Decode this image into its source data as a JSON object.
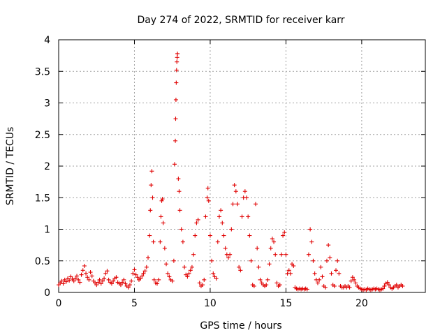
{
  "chart_data": {
    "type": "scatter",
    "title": "Day 274 of 2022, SRMTID for receiver karr",
    "xlabel": "GPS time / hours",
    "ylabel": "SRMTID / TECUs",
    "xlim": [
      0,
      24.2
    ],
    "ylim": [
      0,
      4
    ],
    "x_ticks": [
      0,
      5,
      10,
      15,
      20
    ],
    "x_tick_labels": [
      "0",
      "5",
      "10",
      "15",
      "20"
    ],
    "y_ticks": [
      0,
      0.5,
      1,
      1.5,
      2,
      2.5,
      3,
      3.5,
      4
    ],
    "y_tick_labels": [
      "0",
      "0.5",
      "1",
      "1.5",
      "2",
      "2.5",
      "3",
      "3.5",
      "4"
    ],
    "grid": true,
    "marker": "+",
    "color": "#e00000",
    "series": [
      {
        "name": "SRMTID",
        "points": [
          [
            0.0,
            0.12
          ],
          [
            0.1,
            0.15
          ],
          [
            0.2,
            0.18
          ],
          [
            0.3,
            0.14
          ],
          [
            0.4,
            0.2
          ],
          [
            0.5,
            0.17
          ],
          [
            0.6,
            0.22
          ],
          [
            0.7,
            0.19
          ],
          [
            0.8,
            0.25
          ],
          [
            0.9,
            0.21
          ],
          [
            1.0,
            0.18
          ],
          [
            1.1,
            0.22
          ],
          [
            1.2,
            0.26
          ],
          [
            1.3,
            0.2
          ],
          [
            1.4,
            0.16
          ],
          [
            1.5,
            0.28
          ],
          [
            1.6,
            0.35
          ],
          [
            1.7,
            0.42
          ],
          [
            1.8,
            0.3
          ],
          [
            1.9,
            0.24
          ],
          [
            2.0,
            0.2
          ],
          [
            2.1,
            0.32
          ],
          [
            2.2,
            0.26
          ],
          [
            2.3,
            0.18
          ],
          [
            2.4,
            0.15
          ],
          [
            2.5,
            0.12
          ],
          [
            2.6,
            0.16
          ],
          [
            2.7,
            0.2
          ],
          [
            2.8,
            0.14
          ],
          [
            2.9,
            0.18
          ],
          [
            3.0,
            0.22
          ],
          [
            3.1,
            0.3
          ],
          [
            3.2,
            0.34
          ],
          [
            3.3,
            0.2
          ],
          [
            3.4,
            0.16
          ],
          [
            3.5,
            0.14
          ],
          [
            3.6,
            0.18
          ],
          [
            3.7,
            0.22
          ],
          [
            3.8,
            0.24
          ],
          [
            3.9,
            0.16
          ],
          [
            4.0,
            0.14
          ],
          [
            4.1,
            0.12
          ],
          [
            4.2,
            0.16
          ],
          [
            4.3,
            0.2
          ],
          [
            4.4,
            0.14
          ],
          [
            4.5,
            0.1
          ],
          [
            4.6,
            0.08
          ],
          [
            4.7,
            0.12
          ],
          [
            4.8,
            0.18
          ],
          [
            4.9,
            0.3
          ],
          [
            5.0,
            0.36
          ],
          [
            5.1,
            0.28
          ],
          [
            5.2,
            0.24
          ],
          [
            5.3,
            0.2
          ],
          [
            5.4,
            0.22
          ],
          [
            5.5,
            0.26
          ],
          [
            5.6,
            0.3
          ],
          [
            5.7,
            0.34
          ],
          [
            5.8,
            0.4
          ],
          [
            5.9,
            0.55
          ],
          [
            6.0,
            0.9
          ],
          [
            6.05,
            1.3
          ],
          [
            6.1,
            1.7
          ],
          [
            6.15,
            1.92
          ],
          [
            6.2,
            1.5
          ],
          [
            6.25,
            0.8
          ],
          [
            6.3,
            0.2
          ],
          [
            6.4,
            0.15
          ],
          [
            6.5,
            0.14
          ],
          [
            6.6,
            0.2
          ],
          [
            6.7,
            0.8
          ],
          [
            6.75,
            1.2
          ],
          [
            6.8,
            1.45
          ],
          [
            6.85,
            1.48
          ],
          [
            6.9,
            1.1
          ],
          [
            7.0,
            0.7
          ],
          [
            7.1,
            0.45
          ],
          [
            7.2,
            0.3
          ],
          [
            7.3,
            0.25
          ],
          [
            7.4,
            0.2
          ],
          [
            7.5,
            0.18
          ],
          [
            7.6,
            0.5
          ],
          [
            7.65,
            2.03
          ],
          [
            7.7,
            2.4
          ],
          [
            7.72,
            2.75
          ],
          [
            7.74,
            3.05
          ],
          [
            7.76,
            3.32
          ],
          [
            7.78,
            3.52
          ],
          [
            7.8,
            3.65
          ],
          [
            7.82,
            3.72
          ],
          [
            7.84,
            3.78
          ],
          [
            7.9,
            1.8
          ],
          [
            7.95,
            1.6
          ],
          [
            8.0,
            1.3
          ],
          [
            8.1,
            1.0
          ],
          [
            8.2,
            0.8
          ],
          [
            8.3,
            0.4
          ],
          [
            8.4,
            0.28
          ],
          [
            8.5,
            0.25
          ],
          [
            8.6,
            0.3
          ],
          [
            8.7,
            0.35
          ],
          [
            8.8,
            0.4
          ],
          [
            8.9,
            0.6
          ],
          [
            9.0,
            0.9
          ],
          [
            9.1,
            1.1
          ],
          [
            9.2,
            1.15
          ],
          [
            9.3,
            0.15
          ],
          [
            9.4,
            0.1
          ],
          [
            9.5,
            0.12
          ],
          [
            9.6,
            0.2
          ],
          [
            9.7,
            1.2
          ],
          [
            9.8,
            1.5
          ],
          [
            9.85,
            1.65
          ],
          [
            9.9,
            1.45
          ],
          [
            10.0,
            0.9
          ],
          [
            10.1,
            0.5
          ],
          [
            10.2,
            0.3
          ],
          [
            10.3,
            0.25
          ],
          [
            10.4,
            0.22
          ],
          [
            10.5,
            0.8
          ],
          [
            10.6,
            1.2
          ],
          [
            10.7,
            1.3
          ],
          [
            10.8,
            1.1
          ],
          [
            10.9,
            0.9
          ],
          [
            11.0,
            0.7
          ],
          [
            11.1,
            0.6
          ],
          [
            11.2,
            0.55
          ],
          [
            11.3,
            0.6
          ],
          [
            11.4,
            1.0
          ],
          [
            11.5,
            1.4
          ],
          [
            11.6,
            1.7
          ],
          [
            11.7,
            1.6
          ],
          [
            11.8,
            1.4
          ],
          [
            11.9,
            0.4
          ],
          [
            12.0,
            0.35
          ],
          [
            12.1,
            1.2
          ],
          [
            12.2,
            1.5
          ],
          [
            12.3,
            1.6
          ],
          [
            12.4,
            1.5
          ],
          [
            12.5,
            1.2
          ],
          [
            12.6,
            0.9
          ],
          [
            12.7,
            0.5
          ],
          [
            12.8,
            0.12
          ],
          [
            12.9,
            0.1
          ],
          [
            13.0,
            1.4
          ],
          [
            13.1,
            0.7
          ],
          [
            13.2,
            0.4
          ],
          [
            13.3,
            0.2
          ],
          [
            13.4,
            0.15
          ],
          [
            13.5,
            0.12
          ],
          [
            13.6,
            0.1
          ],
          [
            13.7,
            0.12
          ],
          [
            13.8,
            0.2
          ],
          [
            13.9,
            0.45
          ],
          [
            14.0,
            0.7
          ],
          [
            14.1,
            0.85
          ],
          [
            14.2,
            0.8
          ],
          [
            14.3,
            0.6
          ],
          [
            14.4,
            0.15
          ],
          [
            14.5,
            0.1
          ],
          [
            14.6,
            0.12
          ],
          [
            14.7,
            0.6
          ],
          [
            14.8,
            0.9
          ],
          [
            14.9,
            0.95
          ],
          [
            15.0,
            0.6
          ],
          [
            15.1,
            0.3
          ],
          [
            15.2,
            0.35
          ],
          [
            15.3,
            0.3
          ],
          [
            15.4,
            0.45
          ],
          [
            15.5,
            0.42
          ],
          [
            15.6,
            0.08
          ],
          [
            15.7,
            0.06
          ],
          [
            15.8,
            0.05
          ],
          [
            15.9,
            0.06
          ],
          [
            16.0,
            0.05
          ],
          [
            16.1,
            0.06
          ],
          [
            16.2,
            0.05
          ],
          [
            16.3,
            0.06
          ],
          [
            16.4,
            0.05
          ],
          [
            16.5,
            0.6
          ],
          [
            16.6,
            1.0
          ],
          [
            16.7,
            0.8
          ],
          [
            16.8,
            0.5
          ],
          [
            16.9,
            0.3
          ],
          [
            17.0,
            0.2
          ],
          [
            17.1,
            0.15
          ],
          [
            17.2,
            0.2
          ],
          [
            17.3,
            0.4
          ],
          [
            17.4,
            0.25
          ],
          [
            17.5,
            0.1
          ],
          [
            17.6,
            0.08
          ],
          [
            17.7,
            0.5
          ],
          [
            17.8,
            0.75
          ],
          [
            17.9,
            0.55
          ],
          [
            18.0,
            0.3
          ],
          [
            18.1,
            0.12
          ],
          [
            18.2,
            0.1
          ],
          [
            18.3,
            0.35
          ],
          [
            18.4,
            0.5
          ],
          [
            18.5,
            0.3
          ],
          [
            18.6,
            0.1
          ],
          [
            18.7,
            0.08
          ],
          [
            18.8,
            0.08
          ],
          [
            18.9,
            0.1
          ],
          [
            19.0,
            0.08
          ],
          [
            19.1,
            0.1
          ],
          [
            19.2,
            0.08
          ],
          [
            19.3,
            0.18
          ],
          [
            19.4,
            0.24
          ],
          [
            19.5,
            0.2
          ],
          [
            19.6,
            0.15
          ],
          [
            19.7,
            0.1
          ],
          [
            19.8,
            0.08
          ],
          [
            19.9,
            0.06
          ],
          [
            20.0,
            0.05
          ],
          [
            20.1,
            0.04
          ],
          [
            20.2,
            0.05
          ],
          [
            20.3,
            0.04
          ],
          [
            20.4,
            0.06
          ],
          [
            20.5,
            0.05
          ],
          [
            20.6,
            0.04
          ],
          [
            20.7,
            0.05
          ],
          [
            20.8,
            0.06
          ],
          [
            20.9,
            0.05
          ],
          [
            21.0,
            0.06
          ],
          [
            21.1,
            0.05
          ],
          [
            21.2,
            0.04
          ],
          [
            21.3,
            0.05
          ],
          [
            21.4,
            0.06
          ],
          [
            21.5,
            0.1
          ],
          [
            21.6,
            0.14
          ],
          [
            21.7,
            0.16
          ],
          [
            21.8,
            0.12
          ],
          [
            21.9,
            0.08
          ],
          [
            22.0,
            0.06
          ],
          [
            22.1,
            0.08
          ],
          [
            22.2,
            0.1
          ],
          [
            22.3,
            0.12
          ],
          [
            22.4,
            0.08
          ],
          [
            22.5,
            0.1
          ],
          [
            22.6,
            0.12
          ],
          [
            22.7,
            0.1
          ]
        ]
      }
    ]
  }
}
